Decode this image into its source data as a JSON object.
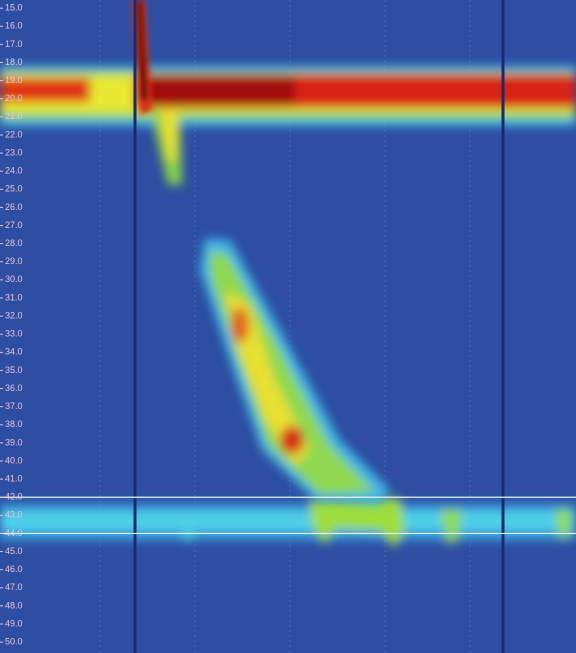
{
  "chart_data": {
    "type": "heatmap",
    "ylim": [
      14.55,
      50.6
    ],
    "y_inverted": true,
    "yticks": [
      {
        "value": 15,
        "label": "15.0"
      },
      {
        "value": 16,
        "label": "16.0"
      },
      {
        "value": 17,
        "label": "17.0"
      },
      {
        "value": 18,
        "label": "18.0"
      },
      {
        "value": 19,
        "label": "19.0"
      },
      {
        "value": 20,
        "label": "20.0"
      },
      {
        "value": 21,
        "label": "21.0"
      },
      {
        "value": 22,
        "label": "22.0"
      },
      {
        "value": 23,
        "label": "23.0"
      },
      {
        "value": 24,
        "label": "24.0"
      },
      {
        "value": 25,
        "label": "25.0"
      },
      {
        "value": 26,
        "label": "26.0"
      },
      {
        "value": 27,
        "label": "27.0"
      },
      {
        "value": 28,
        "label": "28.0"
      },
      {
        "value": 29,
        "label": "29.0"
      },
      {
        "value": 30,
        "label": "30.0"
      },
      {
        "value": 31,
        "label": "31.0"
      },
      {
        "value": 32,
        "label": "32.0"
      },
      {
        "value": 33,
        "label": "33.0"
      },
      {
        "value": 34,
        "label": "34.0"
      },
      {
        "value": 35,
        "label": "35.0"
      },
      {
        "value": 36,
        "label": "36.0"
      },
      {
        "value": 37,
        "label": "37.0"
      },
      {
        "value": 38,
        "label": "38.0"
      },
      {
        "value": 39,
        "label": "39.0"
      },
      {
        "value": 40,
        "label": "40.0"
      },
      {
        "value": 41,
        "label": "41.0"
      },
      {
        "value": 42,
        "label": "42.0"
      },
      {
        "value": 43,
        "label": "43.0"
      },
      {
        "value": 44,
        "label": "44.0"
      },
      {
        "value": 45,
        "label": "45.0"
      },
      {
        "value": 46,
        "label": "46.0"
      },
      {
        "value": 47,
        "label": "47.0"
      },
      {
        "value": 48,
        "label": "48.0"
      },
      {
        "value": 49,
        "label": "49.0"
      },
      {
        "value": 50,
        "label": "50.0"
      }
    ],
    "hlines": [
      42,
      44
    ],
    "hline_color": "#e8f4ff"
  }
}
